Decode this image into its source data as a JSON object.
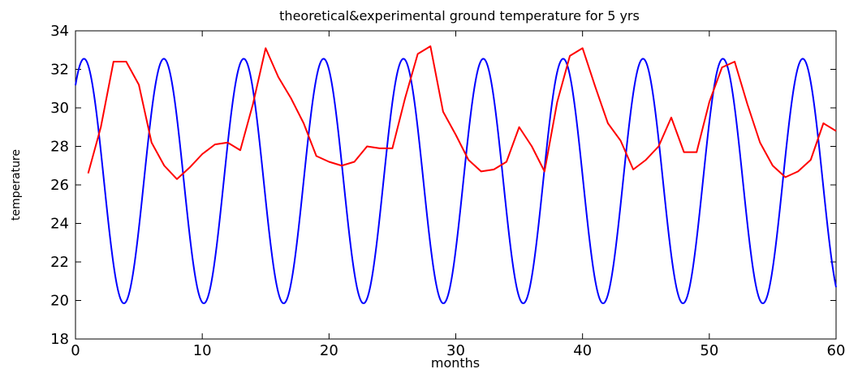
{
  "chart_data": {
    "type": "line",
    "title": "theoretical&experimental ground temperature for 5 yrs",
    "xlabel": "months",
    "ylabel": "temperature",
    "xlim": [
      0,
      60
    ],
    "ylim": [
      18,
      34
    ],
    "xticks": [
      0,
      10,
      20,
      30,
      40,
      50,
      60
    ],
    "yticks": [
      18,
      20,
      22,
      24,
      26,
      28,
      30,
      32,
      34
    ],
    "xtick_labels": [
      "0",
      "10",
      "20",
      "30",
      "40",
      "50",
      "60"
    ],
    "ytick_labels": [
      "18",
      "20",
      "22",
      "24",
      "26",
      "28",
      "30",
      "32",
      "34"
    ],
    "grid": false,
    "series": [
      {
        "color": "#0000ff",
        "function": "sinusoid",
        "mean": 26.2,
        "amplitude": 6.35,
        "period_months": 6.3,
        "phase_rad": 0.9,
        "x_range": [
          0,
          60
        ]
      },
      {
        "color": "#ff0000",
        "x": [
          1,
          2,
          3,
          4,
          5,
          6,
          7,
          8,
          9,
          10,
          11,
          12,
          13,
          14,
          15,
          16,
          17,
          18,
          19,
          20,
          21,
          22,
          23,
          24,
          25,
          26,
          27,
          28,
          29,
          30,
          31,
          32,
          33,
          34,
          35,
          36,
          37,
          38,
          39,
          40,
          41,
          42,
          43,
          44,
          45,
          46,
          47,
          48,
          49,
          50,
          51,
          52,
          53,
          54,
          55,
          56,
          57,
          58,
          59,
          60
        ],
        "y": [
          26.6,
          29.0,
          32.4,
          32.4,
          31.2,
          28.2,
          27.0,
          26.3,
          26.9,
          27.6,
          28.1,
          28.2,
          27.8,
          30.2,
          33.1,
          31.6,
          30.5,
          29.2,
          27.5,
          27.2,
          27.0,
          27.2,
          28.0,
          27.9,
          27.9,
          30.5,
          32.8,
          33.2,
          29.8,
          28.6,
          27.3,
          26.7,
          26.8,
          27.2,
          29.0,
          28.0,
          26.7,
          30.3,
          32.7,
          33.1,
          31.1,
          29.2,
          28.3,
          26.8,
          27.3,
          28.0,
          29.5,
          27.7,
          27.7,
          30.3,
          32.1,
          32.4,
          30.2,
          28.2,
          27.0,
          26.4,
          26.7,
          27.3,
          29.2,
          28.8
        ]
      }
    ]
  }
}
